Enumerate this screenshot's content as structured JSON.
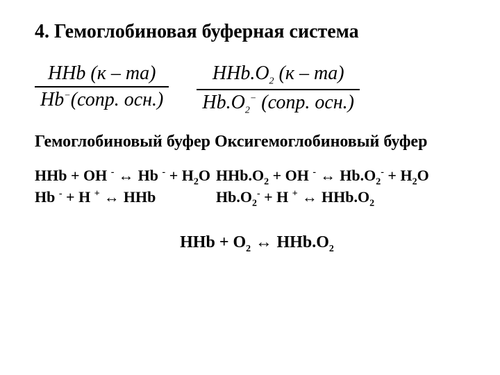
{
  "title": "4. Гемоглобиновая   буферная система",
  "formula_left": {
    "numerator": "HHb (к – mа)",
    "denominator_pre": "Hb",
    "denominator_sup": "−",
    "denominator_post": "(сопр. осн.)"
  },
  "formula_right": {
    "numerator_pre": "HHb.O",
    "numerator_sub": "2",
    "numerator_post": " (к – mа)",
    "denominator_pre": "Hb.O",
    "denominator_sub": "2",
    "denominator_sup": "−",
    "denominator_post": " (сопр. осн.)"
  },
  "label_left": "Гемоглобиновый буфер",
  "label_right": "Оксигемоглобиновый буфер",
  "eq": {
    "HHb": "HHb",
    "plus": " + ",
    "OH": "OH",
    "minus": "-",
    "arrow": " ↔ ",
    "Hb": "Hb",
    "H2O_pre": "H",
    "H2O_sub": "2",
    "H2O_post": "O",
    "H": "H",
    "Hsup": "+",
    "HHbO2_pre": "HHb.O",
    "HHbO2_sub": "2",
    "HbO2_pre": "Hb.O",
    "HbO2_sub": "2",
    "O2_pre": "O",
    "O2_sub": "2"
  },
  "colors": {
    "text": "#000000",
    "background": "#ffffff"
  },
  "typography": {
    "title_fontsize": 28,
    "formula_fontsize": 28,
    "label_fontsize": 24,
    "eq_fontsize": 22,
    "final_fontsize": 24,
    "font_family": "Times New Roman"
  }
}
